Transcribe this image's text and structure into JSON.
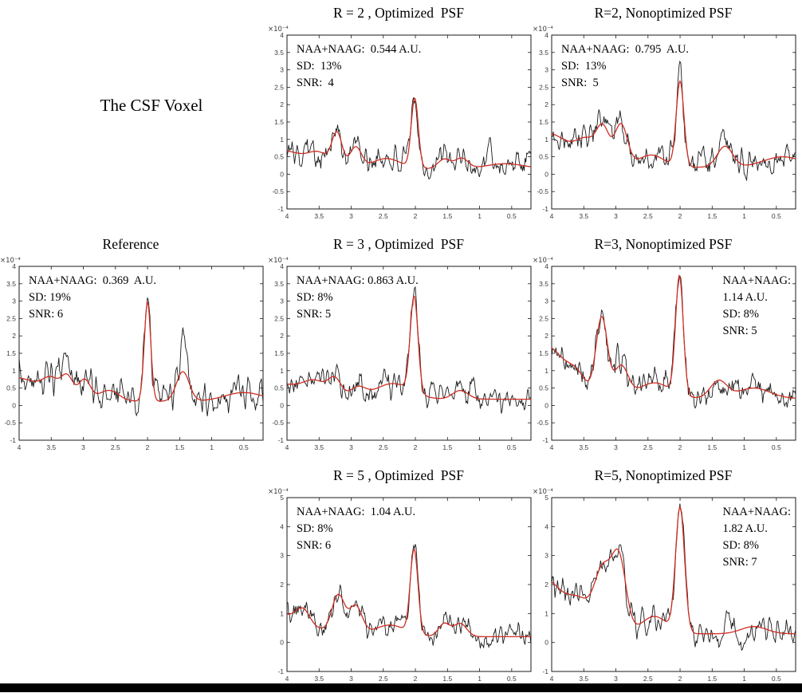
{
  "figure_label": "The CSF Voxel",
  "footer_bar_color": "#000000",
  "chart_data": [
    {
      "type": "line",
      "id": "r2-optimized",
      "title": "R = 2 , Optimized  PSF",
      "annotation": {
        "side": "left",
        "lines": [
          "NAA+NAAG:  0.544 A.U.",
          "SD:  13%",
          "SNR:  4"
        ]
      },
      "xlabel": "",
      "ylabel": "",
      "xlim": [
        4,
        0.2
      ],
      "x_ticks": [
        4,
        3.5,
        3,
        2.5,
        2,
        1.5,
        1,
        0.5
      ],
      "ylim": [
        -1,
        4
      ],
      "y_ticks": [
        -1,
        -0.5,
        0,
        0.5,
        1,
        1.5,
        2,
        2.5,
        3,
        3.5,
        4
      ],
      "y_scale_label": "×10⁻⁴",
      "grid": "off",
      "series": [
        {
          "name": "measured-spectrum",
          "role": "raw",
          "color": "#1c1c1c",
          "noise_amp": 0.3,
          "seed": 101,
          "extra_peaks": [
            [
              3.7,
              0.55,
              0.03
            ],
            [
              0.85,
              0.5,
              0.04
            ]
          ]
        },
        {
          "name": "fitted-spectrum",
          "role": "fit",
          "color": "#cf2e24",
          "baseline": 0.15,
          "peaks": [
            [
              4.15,
              0.55,
              0.45
            ],
            [
              3.5,
              0.3,
              0.15
            ],
            [
              3.22,
              0.95,
              0.08
            ],
            [
              2.93,
              0.6,
              0.09
            ],
            [
              2.45,
              0.3,
              0.22
            ],
            [
              2.01,
              2.0,
              0.055
            ],
            [
              1.55,
              0.28,
              0.1
            ],
            [
              1.28,
              0.3,
              0.1
            ],
            [
              0.6,
              0.15,
              0.3
            ]
          ]
        }
      ]
    },
    {
      "type": "line",
      "id": "r2-nonoptimized",
      "title": "R=2, Nonoptimized PSF",
      "annotation": {
        "side": "left",
        "lines": [
          "NAA+NAAG:  0.795  A.U.",
          "SD:  13%",
          "SNR:  5"
        ]
      },
      "xlabel": "",
      "ylabel": "",
      "xlim": [
        4,
        0.2
      ],
      "x_ticks": [
        4,
        3.5,
        3,
        2.5,
        2,
        1.5,
        1,
        0.5
      ],
      "ylim": [
        -1,
        4
      ],
      "y_ticks": [
        -1,
        -0.5,
        0,
        0.5,
        1,
        1.5,
        2,
        2.5,
        3,
        3.5,
        4
      ],
      "y_scale_label": "×10⁻⁴",
      "grid": "off",
      "series": [
        {
          "name": "measured-spectrum",
          "role": "raw",
          "color": "#1c1c1c",
          "noise_amp": 0.3,
          "seed": 202,
          "extra_peaks": [
            [
              1.65,
              0.5,
              0.04
            ]
          ]
        },
        {
          "name": "fitted-spectrum",
          "role": "fit",
          "color": "#cf2e24",
          "baseline": 0.2,
          "peaks": [
            [
              4.1,
              1.0,
              0.4
            ],
            [
              3.45,
              0.55,
              0.15
            ],
            [
              3.2,
              1.0,
              0.1
            ],
            [
              2.92,
              1.2,
              0.1
            ],
            [
              2.45,
              0.35,
              0.2
            ],
            [
              2.0,
              2.45,
              0.06
            ],
            [
              1.3,
              0.6,
              0.12
            ],
            [
              0.4,
              0.3,
              0.3
            ]
          ]
        }
      ]
    },
    {
      "type": "line",
      "id": "reference",
      "title": "Reference",
      "annotation": {
        "side": "left",
        "lines": [
          "NAA+NAAG:  0.369  A.U.",
          "SD: 19%",
          "SNR: 6"
        ]
      },
      "xlabel": "",
      "ylabel": "",
      "xlim": [
        4,
        0.2
      ],
      "x_ticks": [
        4,
        3.5,
        3,
        2.5,
        2,
        1.5,
        1,
        0.5
      ],
      "ylim": [
        -1,
        4
      ],
      "y_ticks": [
        -1,
        -0.5,
        0,
        0.5,
        1,
        1.5,
        2,
        2.5,
        3,
        3.5,
        4
      ],
      "y_scale_label": "×10⁻⁴",
      "grid": "off",
      "series": [
        {
          "name": "measured-spectrum",
          "role": "raw",
          "color": "#1c1c1c",
          "noise_amp": 0.36,
          "seed": 303,
          "extra_peaks": [
            [
              1.45,
              1.2,
              0.03
            ],
            [
              3.3,
              0.4,
              0.03
            ]
          ]
        },
        {
          "name": "fitted-spectrum",
          "role": "fit",
          "color": "#cf2e24",
          "baseline": 0.12,
          "peaks": [
            [
              4.15,
              0.7,
              0.55
            ],
            [
              3.5,
              0.35,
              0.12
            ],
            [
              3.25,
              0.55,
              0.09
            ],
            [
              2.98,
              0.55,
              0.09
            ],
            [
              2.6,
              0.3,
              0.15
            ],
            [
              2.0,
              2.85,
              0.05
            ],
            [
              1.45,
              0.85,
              0.1
            ],
            [
              0.5,
              0.25,
              0.3
            ]
          ]
        }
      ]
    },
    {
      "type": "line",
      "id": "r3-optimized",
      "title": "R = 3 , Optimized  PSF",
      "annotation": {
        "side": "left",
        "lines": [
          "NAA+NAAG: 0.863 A.U.",
          "SD: 8%",
          "SNR: 5"
        ]
      },
      "xlabel": "",
      "ylabel": "",
      "xlim": [
        4,
        0.2
      ],
      "x_ticks": [
        4,
        3.5,
        3,
        2.5,
        2,
        1.5,
        1,
        0.5
      ],
      "ylim": [
        -1,
        4
      ],
      "y_ticks": [
        -1,
        -0.5,
        0,
        0.5,
        1,
        1.5,
        2,
        2.5,
        3,
        3.5,
        4
      ],
      "y_scale_label": "×10⁻⁴",
      "grid": "off",
      "series": [
        {
          "name": "measured-spectrum",
          "role": "raw",
          "color": "#1c1c1c",
          "noise_amp": 0.28,
          "seed": 404,
          "extra_peaks": [
            [
              1.1,
              0.4,
              0.04
            ]
          ]
        },
        {
          "name": "fitted-spectrum",
          "role": "fit",
          "color": "#cf2e24",
          "baseline": 0.18,
          "peaks": [
            [
              4.15,
              0.45,
              0.4
            ],
            [
              3.55,
              0.4,
              0.18
            ],
            [
              3.25,
              0.5,
              0.1
            ],
            [
              2.9,
              0.3,
              0.12
            ],
            [
              2.35,
              0.45,
              0.28
            ],
            [
              2.02,
              2.75,
              0.06
            ],
            [
              1.3,
              0.25,
              0.12
            ]
          ]
        }
      ]
    },
    {
      "type": "line",
      "id": "r3-nonoptimized",
      "title": "R=3, Nonoptimized PSF",
      "annotation": {
        "side": "right",
        "lines": [
          "NAA+NAAG:",
          "1.14 A.U.",
          "SD: 8%",
          "SNR: 5"
        ]
      },
      "xlabel": "",
      "ylabel": "",
      "xlim": [
        4,
        0.2
      ],
      "x_ticks": [
        4,
        3.5,
        3,
        2.5,
        2,
        1.5,
        1,
        0.5
      ],
      "ylim": [
        -1,
        4
      ],
      "y_ticks": [
        -1,
        -0.5,
        0,
        0.5,
        1,
        1.5,
        2,
        2.5,
        3,
        3.5,
        4
      ],
      "y_scale_label": "×10⁻⁴",
      "grid": "off",
      "series": [
        {
          "name": "measured-spectrum",
          "role": "raw",
          "color": "#1c1c1c",
          "noise_amp": 0.3,
          "seed": 505,
          "extra_peaks": [
            [
              3.0,
              0.4,
              0.03
            ]
          ]
        },
        {
          "name": "fitted-spectrum",
          "role": "fit",
          "color": "#cf2e24",
          "baseline": 0.2,
          "peaks": [
            [
              4.08,
              1.5,
              0.28
            ],
            [
              3.6,
              0.5,
              0.15
            ],
            [
              3.22,
              2.3,
              0.09
            ],
            [
              2.92,
              0.9,
              0.11
            ],
            [
              2.4,
              0.45,
              0.25
            ],
            [
              2.01,
              3.4,
              0.06
            ],
            [
              1.4,
              0.5,
              0.13
            ],
            [
              0.85,
              0.3,
              0.25
            ]
          ]
        }
      ]
    },
    {
      "type": "line",
      "id": "r5-optimized",
      "title": "R = 5 , Optimized  PSF",
      "annotation": {
        "side": "left",
        "lines": [
          "NAA+NAAG:  1.04 A.U.",
          "SD: 8%",
          "SNR: 6"
        ]
      },
      "xlabel": "",
      "ylabel": "",
      "xlim": [
        4,
        0.2
      ],
      "x_ticks": [
        4,
        3.5,
        3,
        2.5,
        2,
        1.5,
        1,
        0.5
      ],
      "ylim": [
        -1,
        5
      ],
      "y_ticks": [
        -1,
        0,
        1,
        2,
        3,
        4,
        5
      ],
      "y_scale_label": "×10⁻⁴",
      "grid": "off",
      "series": [
        {
          "name": "measured-spectrum",
          "role": "raw",
          "color": "#1c1c1c",
          "noise_amp": 0.3,
          "seed": 606,
          "extra_peaks": [
            [
              2.0,
              0.4,
              0.03
            ]
          ]
        },
        {
          "name": "fitted-spectrum",
          "role": "fit",
          "color": "#cf2e24",
          "baseline": 0.2,
          "peaks": [
            [
              4.15,
              0.8,
              0.45
            ],
            [
              3.75,
              0.45,
              0.1
            ],
            [
              3.2,
              1.35,
              0.1
            ],
            [
              2.93,
              1.0,
              0.1
            ],
            [
              2.4,
              0.4,
              0.25
            ],
            [
              2.02,
              2.9,
              0.06
            ],
            [
              1.55,
              0.45,
              0.09
            ],
            [
              1.3,
              0.45,
              0.1
            ]
          ]
        }
      ]
    },
    {
      "type": "line",
      "id": "r5-nonoptimized",
      "title": "R=5, Nonoptimized PSF",
      "annotation": {
        "side": "right",
        "lines": [
          "NAA+NAAG:",
          "1.82 A.U.",
          "SD: 8%",
          "SNR: 7"
        ]
      },
      "xlabel": "",
      "ylabel": "",
      "xlim": [
        4,
        0.2
      ],
      "x_ticks": [
        4,
        3.5,
        3,
        2.5,
        2,
        1.5,
        1,
        0.5
      ],
      "ylim": [
        -1,
        5
      ],
      "y_ticks": [
        -1,
        0,
        1,
        2,
        3,
        4,
        5
      ],
      "y_scale_label": "×10⁻⁴",
      "grid": "off",
      "series": [
        {
          "name": "measured-spectrum",
          "role": "raw",
          "color": "#1c1c1c",
          "noise_amp": 0.33,
          "seed": 707,
          "extra_peaks": [
            [
              1.25,
              0.6,
              0.06
            ],
            [
              1.05,
              -0.8,
              0.06
            ]
          ]
        },
        {
          "name": "fitted-spectrum",
          "role": "fit",
          "color": "#cf2e24",
          "baseline": 0.3,
          "peaks": [
            [
              4.12,
              1.9,
              0.3
            ],
            [
              3.55,
              0.9,
              0.18
            ],
            [
              3.2,
              2.1,
              0.13
            ],
            [
              2.95,
              2.5,
              0.11
            ],
            [
              2.4,
              0.6,
              0.2
            ],
            [
              2.0,
              4.3,
              0.07
            ],
            [
              0.85,
              0.25,
              0.2
            ]
          ]
        }
      ]
    }
  ]
}
